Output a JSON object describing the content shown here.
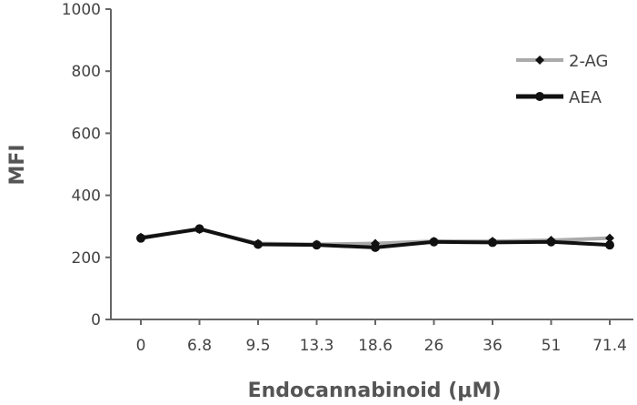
{
  "chart_data": {
    "type": "line",
    "title": "",
    "xlabel": "Endocannabinoid (μM)",
    "ylabel": "MFI",
    "categories": [
      "0",
      "6.8",
      "9.5",
      "13.3",
      "18.6",
      "26",
      "36",
      "51",
      "71.4"
    ],
    "ylim": [
      0,
      1000
    ],
    "yticks": [
      0,
      200,
      400,
      600,
      800,
      1000
    ],
    "grid": false,
    "legend_position": "top-right",
    "series": [
      {
        "name": "2-AG",
        "values": [
          265,
          290,
          245,
          242,
          245,
          252,
          252,
          255,
          262
        ],
        "color": "#aaaaaa",
        "marker_color": "#111111",
        "marker": "diamond"
      },
      {
        "name": "AEA",
        "values": [
          262,
          292,
          242,
          240,
          232,
          250,
          248,
          250,
          240
        ],
        "color": "#111111",
        "marker_color": "#111111",
        "marker": "circle"
      }
    ]
  }
}
